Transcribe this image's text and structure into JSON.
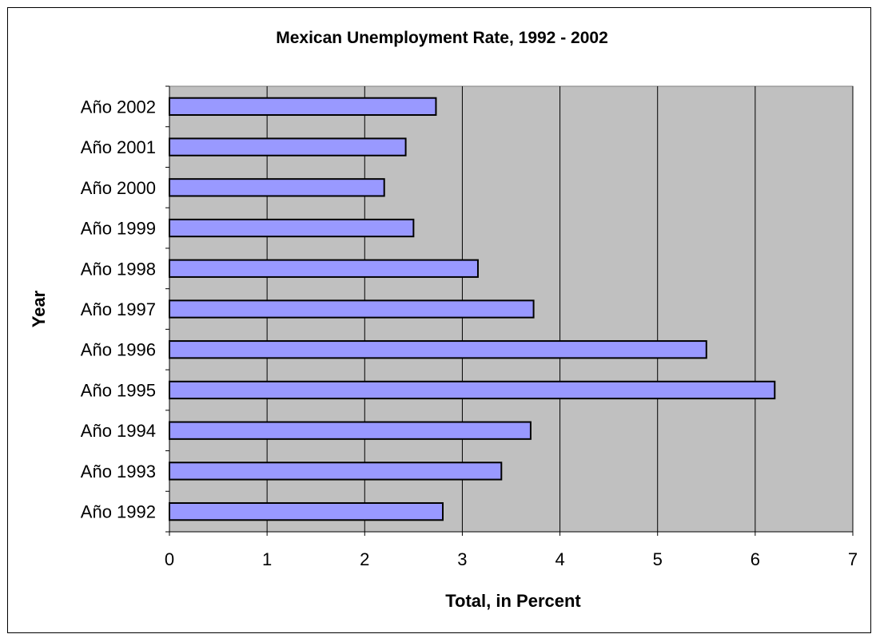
{
  "chart_data": {
    "type": "bar",
    "orientation": "horizontal",
    "title": "Mexican Unemployment Rate, 1992 - 2002",
    "xlabel": "Total, in Percent",
    "ylabel": "Year",
    "categories": [
      "Año 1992",
      "Año 1993",
      "Año 1994",
      "Año 1995",
      "Año 1996",
      "Año 1997",
      "Año 1998",
      "Año 1999",
      "Año 2000",
      "Año 2001",
      "Año 2002"
    ],
    "values": [
      2.8,
      3.4,
      3.7,
      6.2,
      5.5,
      3.73,
      3.16,
      2.5,
      2.2,
      2.42,
      2.73
    ],
    "xlim": [
      0,
      7
    ],
    "xticks": [
      "0",
      "1",
      "2",
      "3",
      "4",
      "5",
      "6",
      "7"
    ],
    "grid": "vertical",
    "legend": "none",
    "colors": {
      "bar_fill": "#9999ff",
      "bar_stroke": "#000000",
      "plot_background": "#c0c0c0",
      "gridline": "#000000"
    }
  }
}
